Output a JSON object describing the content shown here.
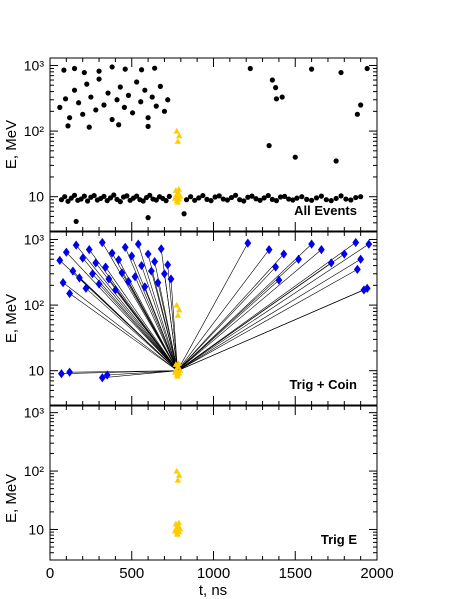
{
  "chart_data": {
    "type": "scatter",
    "shared_x": {
      "label": "t, ns",
      "xlim": [
        0,
        2000
      ],
      "ticks": [
        0,
        500,
        1000,
        1500,
        2000
      ],
      "tick_labels": [
        "0",
        "500",
        "1000",
        "1500",
        "2000"
      ]
    },
    "colors": {
      "all_events": "#000000",
      "trigger": "#ffcc00",
      "coincidence": "#0000ee",
      "link_line": "#000000"
    },
    "panels": [
      {
        "label": "All Events",
        "ylabel": "E, MeV",
        "ylog": true,
        "ylim": [
          3,
          1300
        ],
        "y_ticks": [
          10,
          100,
          1000
        ],
        "y_tick_labels": [
          "10",
          "10²",
          "10³"
        ],
        "series": [
          {
            "marker": "circle",
            "color": "#000000",
            "points": [
              [
                60,
                230
              ],
              [
                95,
                310
              ],
              [
                120,
                160
              ],
              [
                150,
                420
              ],
              [
                175,
                270
              ],
              [
                200,
                180
              ],
              [
                225,
                520
              ],
              [
                250,
                330
              ],
              [
                280,
                210
              ],
              [
                300,
                620
              ],
              [
                330,
                250
              ],
              [
                355,
                380
              ],
              [
                380,
                150
              ],
              [
                410,
                300
              ],
              [
                430,
                470
              ],
              [
                455,
                230
              ],
              [
                480,
                350
              ],
              [
                505,
                190
              ],
              [
                530,
                560
              ],
              [
                555,
                280
              ],
              [
                580,
                420
              ],
              [
                600,
                160
              ],
              [
                625,
                330
              ],
              [
                650,
                240
              ],
              [
                675,
                480
              ],
              [
                700,
                200
              ],
              [
                720,
                300
              ],
              [
                85,
                850
              ],
              [
                150,
                900
              ],
              [
                210,
                780
              ],
              [
                300,
                820
              ],
              [
                380,
                950
              ],
              [
                460,
                880
              ],
              [
                560,
                860
              ],
              [
                640,
                910
              ],
              [
                110,
                120
              ],
              [
                240,
                115
              ],
              [
                420,
                125
              ],
              [
                600,
                118
              ],
              [
                1225,
                900
              ],
              [
                1360,
                600
              ],
              [
                1380,
                460
              ],
              [
                1385,
                310
              ],
              [
                1420,
                330
              ],
              [
                1600,
                880
              ],
              [
                1780,
                780
              ],
              [
                1900,
                250
              ],
              [
                1880,
                180
              ],
              [
                1940,
                900
              ],
              [
                1340,
                60
              ],
              [
                1500,
                40
              ],
              [
                1750,
                35
              ],
              [
                160,
                4.2
              ],
              [
                820,
                5.5
              ],
              [
                600,
                4.8
              ],
              [
                70,
                9
              ],
              [
                90,
                10
              ],
              [
                110,
                8.5
              ],
              [
                130,
                9.5
              ],
              [
                150,
                10.5
              ],
              [
                170,
                8.8
              ],
              [
                190,
                9.2
              ],
              [
                210,
                10.2
              ],
              [
                230,
                8.6
              ],
              [
                250,
                9.8
              ],
              [
                270,
                10.4
              ],
              [
                290,
                8.9
              ],
              [
                310,
                9.4
              ],
              [
                330,
                10.1
              ],
              [
                350,
                8.7
              ],
              [
                370,
                9.6
              ],
              [
                390,
                10.6
              ],
              [
                410,
                9.1
              ],
              [
                430,
                8.4
              ],
              [
                450,
                9.9
              ],
              [
                470,
                10.3
              ],
              [
                490,
                8.8
              ],
              [
                510,
                9.5
              ],
              [
                530,
                10.2
              ],
              [
                550,
                9.0
              ],
              [
                570,
                8.6
              ],
              [
                590,
                9.7
              ],
              [
                610,
                10.5
              ],
              [
                630,
                9.2
              ],
              [
                650,
                8.9
              ],
              [
                670,
                10.0
              ],
              [
                690,
                9.4
              ],
              [
                710,
                8.7
              ],
              [
                730,
                10.1
              ],
              [
                835,
                9.0
              ],
              [
                860,
                10.0
              ],
              [
                885,
                8.8
              ],
              [
                910,
                9.6
              ],
              [
                935,
                10.4
              ],
              [
                960,
                9.1
              ],
              [
                985,
                8.7
              ],
              [
                1010,
                9.9
              ],
              [
                1035,
                10.3
              ],
              [
                1060,
                9.2
              ],
              [
                1085,
                8.9
              ],
              [
                1110,
                9.7
              ],
              [
                1135,
                10.5
              ],
              [
                1160,
                9.0
              ],
              [
                1185,
                8.6
              ],
              [
                1210,
                9.8
              ],
              [
                1235,
                10.2
              ],
              [
                1260,
                9.3
              ],
              [
                1285,
                8.8
              ],
              [
                1310,
                9.6
              ],
              [
                1335,
                10.4
              ],
              [
                1360,
                9.1
              ],
              [
                1385,
                8.7
              ],
              [
                1410,
                9.9
              ],
              [
                1435,
                10.1
              ],
              [
                1460,
                9.2
              ],
              [
                1485,
                8.9
              ],
              [
                1510,
                9.5
              ],
              [
                1540,
                10.0
              ],
              [
                1570,
                9.1
              ],
              [
                1600,
                8.8
              ],
              [
                1630,
                9.6
              ],
              [
                1660,
                10.2
              ],
              [
                1690,
                9.0
              ],
              [
                1720,
                8.7
              ],
              [
                1750,
                9.4
              ],
              [
                1780,
                10.3
              ],
              [
                1810,
                9.2
              ],
              [
                1840,
                8.9
              ],
              [
                1870,
                9.7
              ],
              [
                1900,
                10.0
              ]
            ]
          },
          {
            "marker": "triangle",
            "color": "#ffcc00",
            "points": [
              [
                765,
                9.5
              ],
              [
                772,
                10.5
              ],
              [
                778,
                8.8
              ],
              [
                785,
                11.5
              ],
              [
                790,
                9.2
              ],
              [
                796,
                10.2
              ],
              [
                770,
                12.5
              ],
              [
                780,
                8.3
              ],
              [
                788,
                13.0
              ],
              [
                775,
                100
              ],
              [
                790,
                85
              ],
              [
                782,
                70
              ]
            ]
          }
        ]
      },
      {
        "label": "Trig + Coin",
        "ylabel": "E, MeV",
        "ylog": true,
        "ylim": [
          3,
          1300
        ],
        "y_ticks": [
          10,
          100,
          1000
        ],
        "y_tick_labels": [
          "10",
          "10²",
          "10³"
        ],
        "series": [
          {
            "marker": "diamond",
            "color": "#0000ee",
            "points": [
              [
                60,
                480
              ],
              [
                80,
                220
              ],
              [
                100,
                640
              ],
              [
                120,
                150
              ],
              [
                140,
                330
              ],
              [
                160,
                820
              ],
              [
                180,
                260
              ],
              [
                200,
                520
              ],
              [
                220,
                180
              ],
              [
                240,
                700
              ],
              [
                260,
                300
              ],
              [
                280,
                440
              ],
              [
                300,
                210
              ],
              [
                320,
                900
              ],
              [
                340,
                380
              ],
              [
                360,
                250
              ],
              [
                380,
                620
              ],
              [
                400,
                170
              ],
              [
                420,
                490
              ],
              [
                440,
                310
              ],
              [
                460,
                760
              ],
              [
                480,
                230
              ],
              [
                500,
                560
              ],
              [
                520,
                270
              ],
              [
                540,
                850
              ],
              [
                560,
                400
              ],
              [
                580,
                190
              ],
              [
                600,
                600
              ],
              [
                620,
                330
              ],
              [
                640,
                460
              ],
              [
                660,
                220
              ],
              [
                680,
                720
              ],
              [
                700,
                300
              ],
              [
                720,
                410
              ],
              [
                740,
                250
              ],
              [
                70,
                9.0
              ],
              [
                320,
                7.8
              ],
              [
                350,
                8.6
              ],
              [
                120,
                9.5
              ],
              [
                1210,
                880
              ],
              [
                1340,
                700
              ],
              [
                1380,
                380
              ],
              [
                1400,
                240
              ],
              [
                1430,
                600
              ],
              [
                1520,
                500
              ],
              [
                1600,
                850
              ],
              [
                1660,
                700
              ],
              [
                1720,
                440
              ],
              [
                1800,
                600
              ],
              [
                1870,
                900
              ],
              [
                1880,
                350
              ],
              [
                1900,
                500
              ],
              [
                1920,
                170
              ],
              [
                1940,
                180
              ],
              [
                1950,
                850
              ]
            ]
          },
          {
            "marker": "triangle",
            "color": "#ffcc00",
            "points": [
              [
                765,
                9.5
              ],
              [
                772,
                10.5
              ],
              [
                778,
                8.8
              ],
              [
                785,
                11.5
              ],
              [
                790,
                9.2
              ],
              [
                796,
                10.2
              ],
              [
                770,
                12.5
              ],
              [
                780,
                8.3
              ],
              [
                788,
                13.0
              ],
              [
                775,
                100
              ],
              [
                790,
                85
              ],
              [
                782,
                70
              ]
            ]
          }
        ]
      },
      {
        "label": "Trig E",
        "ylabel": "E, MeV",
        "ylog": true,
        "ylim": [
          3,
          1300
        ],
        "y_ticks": [
          10,
          100,
          1000
        ],
        "y_tick_labels": [
          "10",
          "10²",
          "10³"
        ],
        "series": [
          {
            "marker": "triangle",
            "color": "#ffcc00",
            "points": [
              [
                765,
                9.5
              ],
              [
                772,
                10.5
              ],
              [
                778,
                8.8
              ],
              [
                785,
                11.5
              ],
              [
                790,
                9.2
              ],
              [
                796,
                10.2
              ],
              [
                770,
                12.5
              ],
              [
                780,
                8.3
              ],
              [
                788,
                13.0
              ],
              [
                775,
                100
              ],
              [
                790,
                85
              ],
              [
                782,
                70
              ]
            ]
          }
        ]
      }
    ]
  }
}
